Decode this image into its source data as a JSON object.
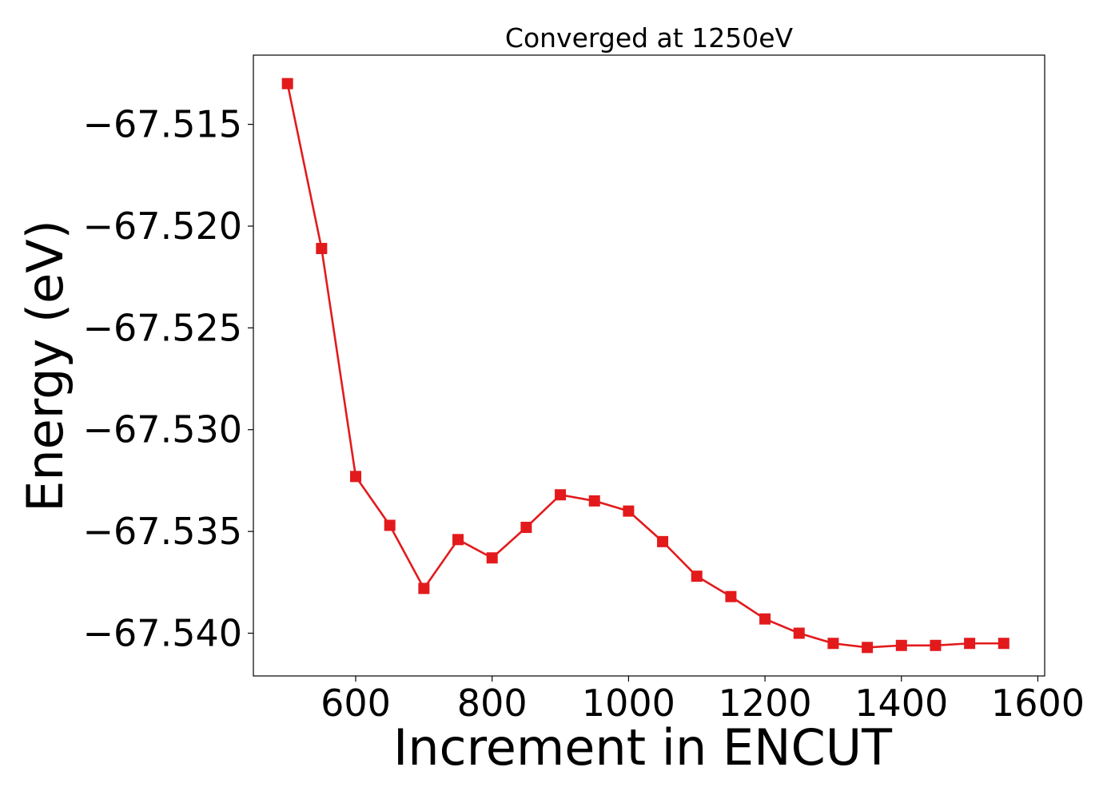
{
  "chart_data": {
    "type": "line",
    "title": "Converged at 1250eV",
    "xlabel": "Increment in ENCUT",
    "ylabel": "Energy (eV)",
    "xlim": [
      450,
      1610
    ],
    "ylim": [
      -67.5421,
      -67.5116
    ],
    "xticks": [
      600,
      800,
      1000,
      1200,
      1400,
      1600
    ],
    "xtick_labels": [
      "600",
      "800",
      "1000",
      "1200",
      "1400",
      "1600"
    ],
    "yticks": [
      -67.515,
      -67.52,
      -67.525,
      -67.53,
      -67.535,
      -67.54
    ],
    "ytick_labels": [
      "−67.515",
      "−67.520",
      "−67.525",
      "−67.530",
      "−67.535",
      "−67.540"
    ],
    "grid": false,
    "legend": "none",
    "marker": "square",
    "color": "#e31a1c",
    "series": [
      {
        "x": [
          500,
          550,
          600,
          650,
          700,
          750,
          800,
          850,
          900,
          950,
          1000,
          1050,
          1100,
          1150,
          1200,
          1250,
          1300,
          1350,
          1400,
          1450,
          1500,
          1550
        ],
        "y": [
          -67.513,
          -67.5211,
          -67.5323,
          -67.5347,
          -67.5378,
          -67.5354,
          -67.5363,
          -67.5348,
          -67.5332,
          -67.5335,
          -67.534,
          -67.5355,
          -67.5372,
          -67.5382,
          -67.5393,
          -67.54,
          -67.5405,
          -67.5407,
          -67.5406,
          -67.5406,
          -67.5405,
          -67.5405
        ]
      }
    ]
  }
}
